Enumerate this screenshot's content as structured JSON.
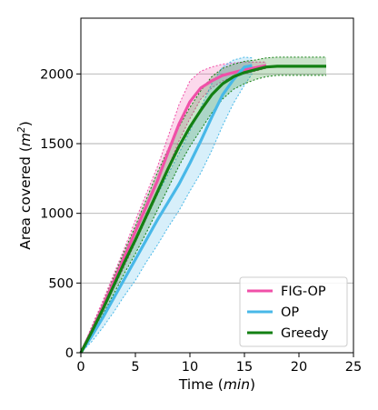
{
  "chart_data": {
    "type": "line",
    "xlabel_prefix": "Time (",
    "xlabel_unit": "min",
    "xlabel_suffix": ")",
    "ylabel_prefix": "Area covered (",
    "ylabel_unit": "m",
    "ylabel_exp": "2",
    "ylabel_suffix": ")",
    "xlim": [
      0,
      25
    ],
    "ylim": [
      0,
      2400
    ],
    "xticks": [
      0,
      5,
      10,
      15,
      20,
      25
    ],
    "yticks": [
      0,
      500,
      1000,
      1500,
      2000
    ],
    "grid": "horizontal",
    "legend_position": "bottom-right",
    "series": [
      {
        "name": "FIG-OP",
        "color": "#f050a8",
        "x": [
          0,
          1,
          2,
          3,
          4,
          5,
          6,
          7,
          8,
          9,
          10,
          11,
          12,
          13,
          14,
          15,
          16,
          17
        ],
        "mean": [
          0,
          160,
          330,
          510,
          690,
          870,
          1050,
          1230,
          1440,
          1640,
          1800,
          1900,
          1950,
          1990,
          2010,
          2030,
          2045,
          2060
        ],
        "lower": [
          0,
          130,
          290,
          460,
          620,
          790,
          960,
          1130,
          1330,
          1520,
          1680,
          1820,
          1900,
          1950,
          1980,
          2000,
          2020,
          2040
        ],
        "upper": [
          0,
          190,
          370,
          560,
          750,
          950,
          1140,
          1330,
          1550,
          1780,
          1950,
          2020,
          2050,
          2070,
          2080,
          2085,
          2085,
          2085
        ]
      },
      {
        "name": "OP",
        "color": "#48b8e8",
        "x": [
          0,
          1,
          2,
          3,
          4,
          5,
          6,
          7,
          8,
          9,
          10,
          11,
          12,
          13,
          14,
          15,
          15.7
        ],
        "mean": [
          0,
          120,
          250,
          390,
          530,
          670,
          810,
          950,
          1080,
          1210,
          1360,
          1520,
          1690,
          1850,
          1960,
          2050,
          2060
        ],
        "lower": [
          0,
          80,
          180,
          290,
          410,
          520,
          650,
          770,
          900,
          1020,
          1160,
          1290,
          1450,
          1630,
          1790,
          1920,
          2000
        ],
        "upper": [
          0,
          160,
          320,
          490,
          650,
          820,
          980,
          1130,
          1280,
          1430,
          1590,
          1760,
          1930,
          2050,
          2100,
          2120,
          2115
        ]
      },
      {
        "name": "Greedy",
        "color": "#138013",
        "x": [
          0,
          1,
          2,
          3,
          4,
          5,
          6,
          7,
          8,
          9,
          10,
          11,
          12,
          13,
          14,
          15,
          16,
          17,
          18,
          19,
          20,
          21,
          22.5
        ],
        "mean": [
          0,
          150,
          310,
          480,
          650,
          810,
          980,
          1150,
          1320,
          1480,
          1620,
          1740,
          1850,
          1930,
          1980,
          2010,
          2030,
          2050,
          2055,
          2055,
          2055,
          2055,
          2055
        ],
        "lower": [
          0,
          120,
          270,
          420,
          570,
          710,
          860,
          1020,
          1180,
          1340,
          1480,
          1600,
          1720,
          1820,
          1890,
          1930,
          1960,
          1980,
          1990,
          1990,
          1990,
          1990,
          1990
        ],
        "upper": [
          0,
          180,
          350,
          540,
          730,
          910,
          1100,
          1290,
          1460,
          1620,
          1760,
          1880,
          1980,
          2040,
          2070,
          2090,
          2100,
          2115,
          2120,
          2120,
          2120,
          2120,
          2120
        ]
      }
    ]
  }
}
